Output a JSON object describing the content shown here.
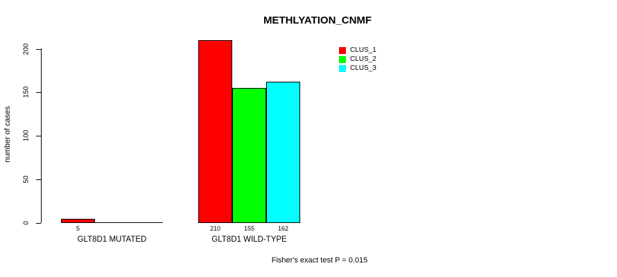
{
  "chart_data": {
    "type": "bar",
    "title": "METHLYATION_CNMF",
    "xlabel": "",
    "ylabel": "number of cases",
    "ylim": [
      0,
      200
    ],
    "yticks": [
      "0",
      "50",
      "100",
      "150",
      "200"
    ],
    "categories": [
      "GLT8D1 MUTATED",
      "GLT8D1 WILD-TYPE"
    ],
    "series": [
      {
        "name": "CLUS_1",
        "color": "#ff0000",
        "values": [
          5,
          210
        ]
      },
      {
        "name": "CLUS_2",
        "color": "#00ff00",
        "values": [
          0,
          155
        ]
      },
      {
        "name": "CLUS_3",
        "color": "#00ffff",
        "values": [
          0,
          162
        ]
      }
    ],
    "bar_value_labels": [
      [
        "5",
        null,
        null
      ],
      [
        "210",
        "155",
        "162"
      ]
    ],
    "legend_position": "top-right",
    "grid": false,
    "background": "#ffffff",
    "annotation": "Fisher's exact test P = 0.015"
  }
}
